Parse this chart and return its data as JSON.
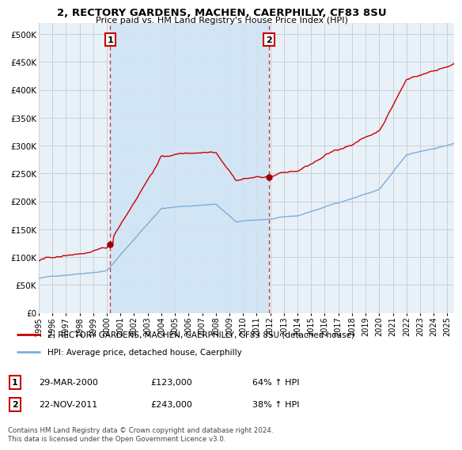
{
  "title": "2, RECTORY GARDENS, MACHEN, CAERPHILLY, CF83 8SU",
  "subtitle": "Price paid vs. HM Land Registry's House Price Index (HPI)",
  "red_label": "2, RECTORY GARDENS, MACHEN, CAERPHILLY, CF83 8SU (detached house)",
  "blue_label": "HPI: Average price, detached house, Caerphilly",
  "sale1_date": "29-MAR-2000",
  "sale1_price": 123000,
  "sale1_hpi": "64% ↑ HPI",
  "sale2_date": "22-NOV-2011",
  "sale2_price": 243000,
  "sale2_hpi": "38% ↑ HPI",
  "footer": "Contains HM Land Registry data © Crown copyright and database right 2024.\nThis data is licensed under the Open Government Licence v3.0.",
  "xlim_start": 1995.0,
  "xlim_end": 2025.5,
  "ylim_min": 0,
  "ylim_max": 520000,
  "yticks": [
    0,
    50000,
    100000,
    150000,
    200000,
    250000,
    300000,
    350000,
    400000,
    450000,
    500000
  ],
  "background_color": "#ffffff",
  "plot_bg_color": "#e8f0f8",
  "grid_color": "#c8d0d8",
  "red_color": "#cc0000",
  "blue_color": "#7aaedc",
  "sale_marker_color": "#990000",
  "shade_color": "#d0e4f4",
  "sale1_x": 2000.25,
  "sale2_x": 2011.9
}
